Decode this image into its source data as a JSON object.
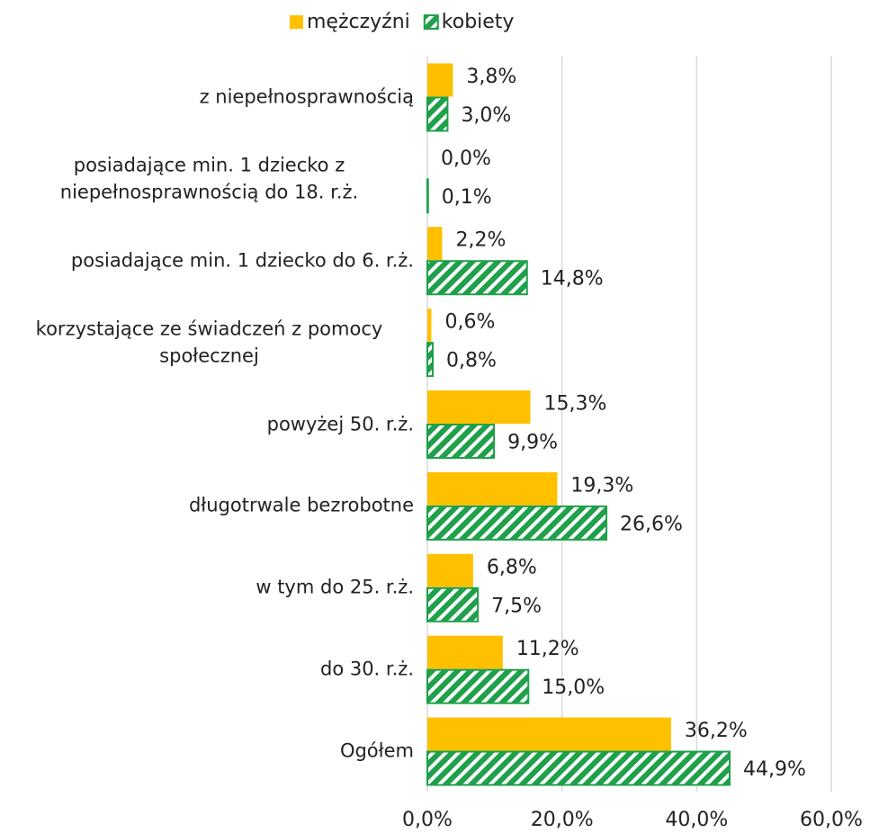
{
  "chart_data": {
    "type": "barh",
    "categories": [
      "z niepełnosprawnością",
      "posiadające min. 1 dziecko z niepełnosprawnością do 18. r.ż.",
      "posiadające min. 1 dziecko do 6. r.ż.",
      "korzystające ze świadczeń z pomocy społecznej",
      "powyżej 50. r.ż.",
      "długotrwale bezrobotne",
      "w tym do 25. r.ż.",
      "do 30. r.ż.",
      "Ogółem"
    ],
    "series": [
      {
        "name": "mężczyźni",
        "color": "#ffc000",
        "values": [
          3.8,
          0.0,
          2.2,
          0.6,
          15.3,
          19.3,
          6.8,
          11.2,
          36.2
        ],
        "value_labels": [
          "3,8%",
          "0,0%",
          "2,2%",
          "0,6%",
          "15,3%",
          "19,3%",
          "6,8%",
          "11,2%",
          "36,2%"
        ]
      },
      {
        "name": "kobiety",
        "color": "#1fa04a",
        "pattern": "hatch",
        "values": [
          3.0,
          0.1,
          14.8,
          0.8,
          9.9,
          26.6,
          7.5,
          15.0,
          44.9
        ],
        "value_labels": [
          "3,0%",
          "0,1%",
          "14,8%",
          "0,8%",
          "9,9%",
          "26,6%",
          "7,5%",
          "15,0%",
          "44,9%"
        ]
      }
    ],
    "xlim": [
      0,
      60
    ],
    "xticks": [
      {
        "value": 0,
        "label": "0,0%"
      },
      {
        "value": 20,
        "label": "20,0%"
      },
      {
        "value": 40,
        "label": "40,0%"
      },
      {
        "value": 60,
        "label": "60,0%"
      }
    ],
    "grid": true,
    "legend": "top"
  }
}
